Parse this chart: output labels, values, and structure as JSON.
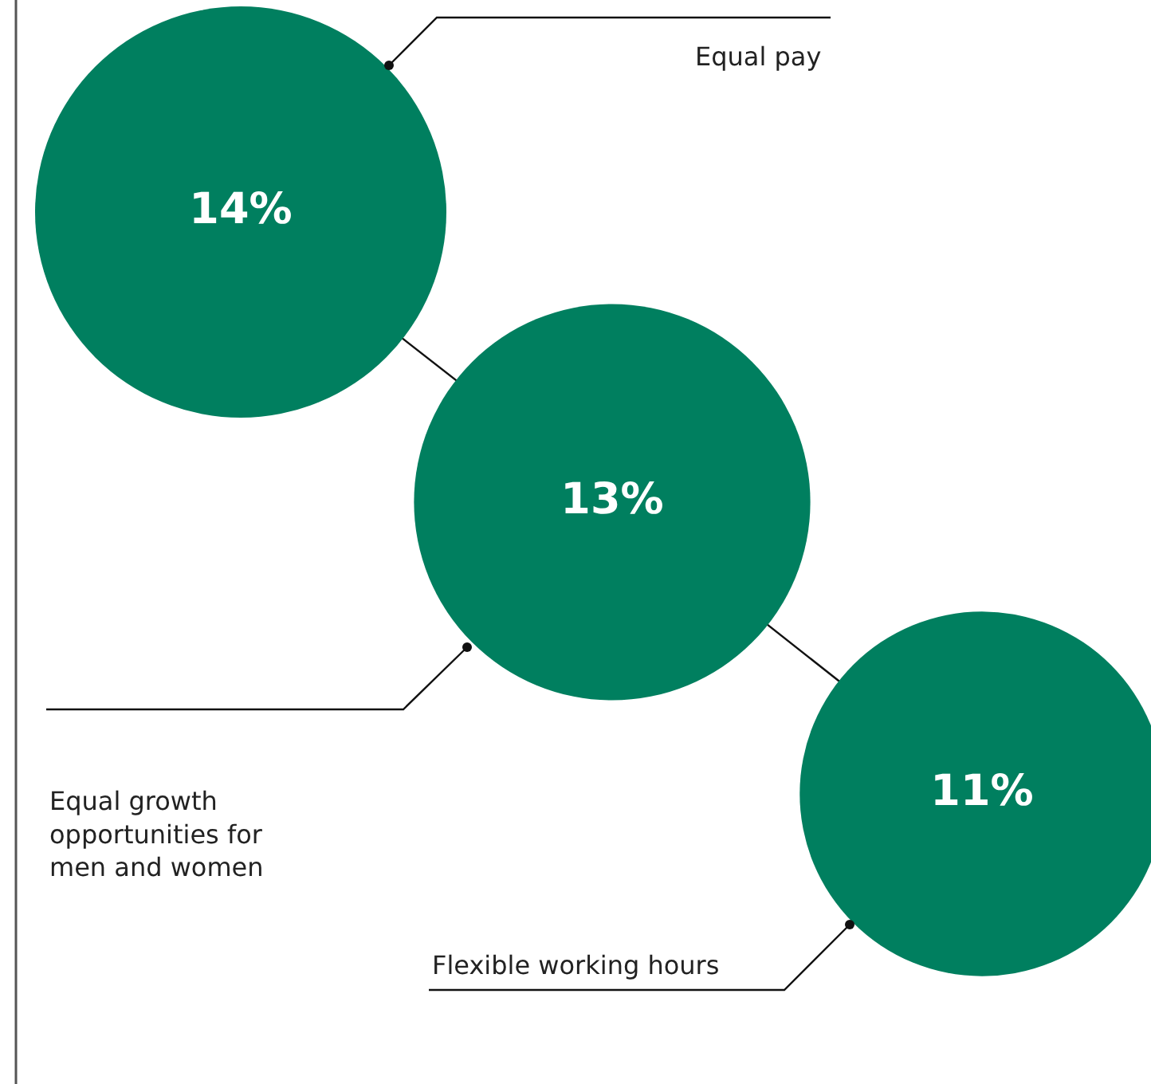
{
  "chart_data": {
    "type": "other",
    "categories": [
      "Equal pay",
      "Equal growth opportunities for men and women",
      "Flexible working hours"
    ],
    "values": [
      14,
      13,
      11
    ],
    "value_labels": [
      "14%",
      "13%",
      "11%"
    ],
    "color": "#007f5f"
  }
}
